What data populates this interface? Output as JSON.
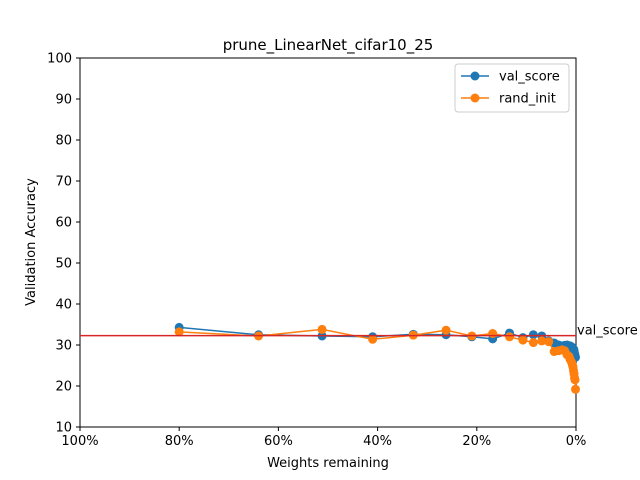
{
  "chart_data": {
    "type": "line",
    "title": "prune_LinearNet_cifar10_25",
    "xlabel": "Weights remaining",
    "ylabel": "Validation Accuracy",
    "xlim": [
      100,
      0
    ],
    "ylim": [
      10,
      100
    ],
    "x_ticks": [
      100,
      80,
      60,
      40,
      20,
      0
    ],
    "x_tick_labels": [
      "100%",
      "80%",
      "60%",
      "40%",
      "20%",
      "0%"
    ],
    "y_ticks": [
      10,
      20,
      30,
      40,
      50,
      60,
      70,
      80,
      90,
      100
    ],
    "y_tick_labels": [
      "10",
      "20",
      "30",
      "40",
      "50",
      "60",
      "70",
      "80",
      "90",
      "100"
    ],
    "grid": false,
    "legend_position": "upper right",
    "reference_line": {
      "label": "val_score",
      "y": 32.3,
      "color": "#d62728"
    },
    "series": [
      {
        "name": "val_score",
        "color": "#1f77b4",
        "x": [
          80,
          64,
          51.2,
          41,
          32.8,
          26.2,
          21,
          16.8,
          13.4,
          10.7,
          8.6,
          6.9,
          5.5,
          4.4,
          3.5,
          2.8,
          2.3,
          1.8,
          1.4,
          1.2,
          0.9,
          0.7,
          0.6,
          0.5,
          0.4,
          0.3,
          0.2,
          0.1
        ],
        "y": [
          34.3,
          32.5,
          32.2,
          32.0,
          32.6,
          32.5,
          32.0,
          31.5,
          32.9,
          31.8,
          32.5,
          32.2,
          31.0,
          30.5,
          30.0,
          29.8,
          29.9,
          30.0,
          29.6,
          29.8,
          29.5,
          29.4,
          29.0,
          29.0,
          28.7,
          28.0,
          27.5,
          27.0
        ]
      },
      {
        "name": "rand_init",
        "color": "#ff7f0e",
        "x": [
          80,
          64,
          51.2,
          41,
          32.8,
          26.2,
          21,
          16.8,
          13.4,
          10.7,
          8.6,
          6.9,
          5.5,
          4.4,
          3.5,
          2.8,
          2.3,
          1.8,
          1.4,
          1.2,
          0.9,
          0.7,
          0.6,
          0.5,
          0.4,
          0.3,
          0.2,
          0.1
        ],
        "y": [
          33.2,
          32.2,
          33.8,
          31.4,
          32.4,
          33.6,
          32.2,
          32.8,
          32.0,
          31.2,
          30.6,
          31.0,
          30.8,
          28.4,
          28.6,
          28.8,
          28.6,
          27.6,
          27.2,
          26.5,
          25.8,
          25.0,
          24.6,
          23.8,
          23.0,
          22.0,
          21.5,
          19.2
        ]
      }
    ]
  }
}
